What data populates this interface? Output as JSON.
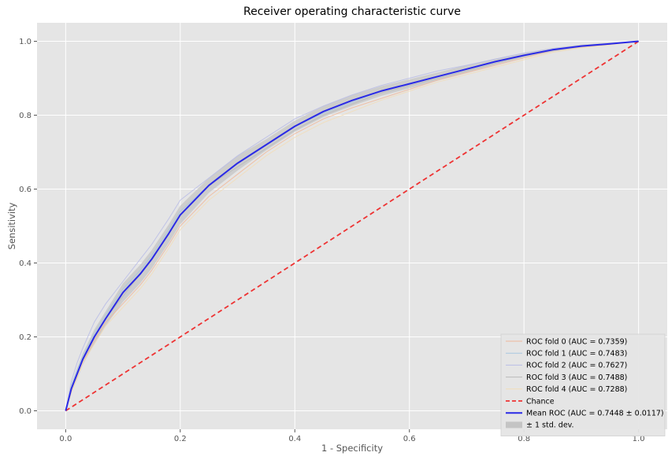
{
  "chart_data": {
    "type": "line",
    "title": "Receiver operating characteristic curve",
    "xlabel": "1 - Specificity",
    "ylabel": "Sensitivity",
    "xlim": [
      -0.05,
      1.05
    ],
    "ylim": [
      -0.05,
      1.05
    ],
    "xticks": [
      0.0,
      0.2,
      0.4,
      0.6,
      0.8,
      1.0
    ],
    "yticks": [
      0.0,
      0.2,
      0.4,
      0.6,
      0.8,
      1.0
    ],
    "xtick_labels": [
      "0.0",
      "0.2",
      "0.4",
      "0.6",
      "0.8",
      "1.0"
    ],
    "ytick_labels": [
      "0.0",
      "0.2",
      "0.4",
      "0.6",
      "0.8",
      "1.0"
    ],
    "grid": true,
    "background": "#e5e5e5",
    "legend_position": "lower-right",
    "series": [
      {
        "name": "ROC fold 0 (AUC = 0.7359)",
        "color": "#f0b89a",
        "style": "thin",
        "x": [
          0,
          0.01,
          0.02,
          0.03,
          0.05,
          0.07,
          0.1,
          0.13,
          0.15,
          0.18,
          0.2,
          0.25,
          0.3,
          0.35,
          0.4,
          0.45,
          0.5,
          0.55,
          0.6,
          0.65,
          0.7,
          0.75,
          0.8,
          0.85,
          0.9,
          0.95,
          1.0
        ],
        "y": [
          0,
          0.05,
          0.09,
          0.13,
          0.19,
          0.24,
          0.29,
          0.34,
          0.38,
          0.45,
          0.5,
          0.58,
          0.64,
          0.7,
          0.75,
          0.79,
          0.82,
          0.845,
          0.87,
          0.895,
          0.915,
          0.935,
          0.955,
          0.975,
          0.985,
          0.992,
          1.0
        ]
      },
      {
        "name": "ROC fold 1 (AUC = 0.7483)",
        "color": "#a8c8e0",
        "style": "thin",
        "x": [
          0,
          0.01,
          0.02,
          0.03,
          0.05,
          0.07,
          0.1,
          0.13,
          0.15,
          0.18,
          0.2,
          0.25,
          0.3,
          0.35,
          0.4,
          0.45,
          0.5,
          0.55,
          0.6,
          0.65,
          0.7,
          0.75,
          0.8,
          0.85,
          0.9,
          0.95,
          1.0
        ],
        "y": [
          0,
          0.07,
          0.11,
          0.15,
          0.21,
          0.26,
          0.33,
          0.38,
          0.42,
          0.49,
          0.54,
          0.61,
          0.67,
          0.72,
          0.77,
          0.805,
          0.835,
          0.865,
          0.885,
          0.905,
          0.925,
          0.945,
          0.962,
          0.978,
          0.987,
          0.993,
          1.0
        ]
      },
      {
        "name": "ROC fold 2 (AUC = 0.7627)",
        "color": "#b8bce6",
        "style": "thin",
        "x": [
          0,
          0.01,
          0.02,
          0.03,
          0.05,
          0.07,
          0.1,
          0.13,
          0.15,
          0.18,
          0.2,
          0.25,
          0.3,
          0.35,
          0.4,
          0.45,
          0.5,
          0.55,
          0.6,
          0.65,
          0.7,
          0.75,
          0.8,
          0.85,
          0.9,
          0.95,
          1.0
        ],
        "y": [
          0,
          0.08,
          0.13,
          0.17,
          0.24,
          0.29,
          0.35,
          0.41,
          0.45,
          0.52,
          0.57,
          0.63,
          0.69,
          0.74,
          0.79,
          0.825,
          0.855,
          0.88,
          0.9,
          0.92,
          0.935,
          0.952,
          0.968,
          0.98,
          0.988,
          0.994,
          1.0
        ]
      },
      {
        "name": "ROC fold 3 (AUC = 0.7488)",
        "color": "#bbbbbb",
        "style": "thin",
        "x": [
          0,
          0.01,
          0.02,
          0.03,
          0.05,
          0.07,
          0.1,
          0.13,
          0.15,
          0.18,
          0.2,
          0.25,
          0.3,
          0.35,
          0.4,
          0.45,
          0.5,
          0.55,
          0.6,
          0.65,
          0.7,
          0.75,
          0.8,
          0.85,
          0.9,
          0.95,
          1.0
        ],
        "y": [
          0,
          0.06,
          0.1,
          0.14,
          0.2,
          0.25,
          0.31,
          0.37,
          0.41,
          0.48,
          0.53,
          0.61,
          0.66,
          0.71,
          0.76,
          0.8,
          0.83,
          0.86,
          0.88,
          0.9,
          0.92,
          0.94,
          0.96,
          0.975,
          0.986,
          0.992,
          1.0
        ]
      },
      {
        "name": "ROC fold 4 (AUC = 0.7288)",
        "color": "#f2ddb8",
        "style": "thin",
        "x": [
          0,
          0.01,
          0.02,
          0.03,
          0.05,
          0.07,
          0.1,
          0.13,
          0.15,
          0.18,
          0.2,
          0.25,
          0.3,
          0.35,
          0.4,
          0.45,
          0.5,
          0.55,
          0.6,
          0.65,
          0.7,
          0.75,
          0.8,
          0.85,
          0.9,
          0.95,
          1.0
        ],
        "y": [
          0,
          0.05,
          0.09,
          0.13,
          0.18,
          0.23,
          0.28,
          0.33,
          0.37,
          0.44,
          0.49,
          0.57,
          0.63,
          0.69,
          0.74,
          0.78,
          0.81,
          0.84,
          0.865,
          0.89,
          0.91,
          0.93,
          0.95,
          0.97,
          0.982,
          0.99,
          1.0
        ]
      },
      {
        "name": "Chance",
        "color": "#ee3333",
        "style": "dashed",
        "x": [
          0,
          1
        ],
        "y": [
          0,
          1
        ]
      },
      {
        "name": "Mean ROC (AUC = 0.7448 ± 0.0117)",
        "color": "#2a2ae6",
        "style": "thick",
        "x": [
          0,
          0.01,
          0.02,
          0.03,
          0.05,
          0.07,
          0.1,
          0.13,
          0.15,
          0.18,
          0.2,
          0.25,
          0.3,
          0.35,
          0.4,
          0.45,
          0.5,
          0.55,
          0.6,
          0.65,
          0.7,
          0.75,
          0.8,
          0.85,
          0.9,
          0.95,
          1.0
        ],
        "y": [
          0,
          0.06,
          0.1,
          0.14,
          0.2,
          0.25,
          0.32,
          0.37,
          0.41,
          0.48,
          0.53,
          0.61,
          0.67,
          0.72,
          0.77,
          0.81,
          0.84,
          0.865,
          0.885,
          0.905,
          0.925,
          0.945,
          0.962,
          0.977,
          0.987,
          0.993,
          1.0
        ]
      }
    ],
    "band": {
      "name": "± 1 std. dev.",
      "color": "#c4c4c4",
      "x": [
        0,
        0.01,
        0.02,
        0.03,
        0.05,
        0.07,
        0.1,
        0.13,
        0.15,
        0.18,
        0.2,
        0.25,
        0.3,
        0.35,
        0.4,
        0.45,
        0.5,
        0.55,
        0.6,
        0.65,
        0.7,
        0.75,
        0.8,
        0.85,
        0.9,
        0.95,
        1.0
      ],
      "lower": [
        0,
        0.05,
        0.085,
        0.125,
        0.18,
        0.23,
        0.295,
        0.345,
        0.385,
        0.455,
        0.505,
        0.59,
        0.65,
        0.705,
        0.755,
        0.795,
        0.825,
        0.852,
        0.873,
        0.894,
        0.915,
        0.937,
        0.956,
        0.972,
        0.983,
        0.99,
        1.0
      ],
      "upper": [
        0,
        0.07,
        0.115,
        0.155,
        0.22,
        0.27,
        0.345,
        0.395,
        0.435,
        0.505,
        0.555,
        0.63,
        0.69,
        0.735,
        0.785,
        0.825,
        0.855,
        0.878,
        0.897,
        0.916,
        0.935,
        0.953,
        0.968,
        0.982,
        0.991,
        0.996,
        1.0
      ]
    }
  }
}
